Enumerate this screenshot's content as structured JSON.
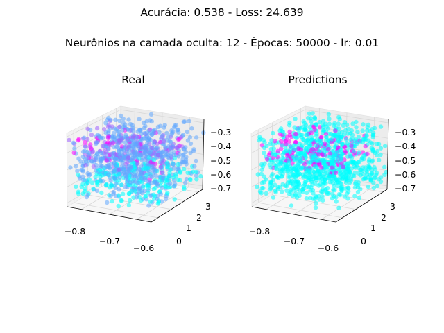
{
  "suptitle_line1": "Acurácia: 0.538 - Loss: 24.639",
  "suptitle_line2": "Neurônios na camada oculta: 12 - Épocas: 50000 - lr: 0.01",
  "colormap": "cool",
  "color_cyan": "#00ffff",
  "color_magenta": "#ff00ff",
  "color_purple": "#a060ff",
  "color_blue": "#60a8ff",
  "chart_data": [
    {
      "type": "scatter",
      "title": "Real",
      "projection": "3d",
      "point_count": 1000,
      "xlim": [
        -0.85,
        -0.55
      ],
      "ylim": [
        -0.5,
        3.3
      ],
      "zlim": [
        -0.72,
        -0.28
      ],
      "x_ticks": [
        "−0.8",
        "−0.7",
        "−0.6"
      ],
      "y_ticks": [
        "0",
        "1",
        "2",
        "3"
      ],
      "z_ticks": [
        "−0.3",
        "−0.4",
        "−0.5",
        "−0.6",
        "−0.7"
      ],
      "color_groups": [
        "magenta",
        "purple",
        "blue",
        "cyan"
      ],
      "grid": true
    },
    {
      "type": "scatter",
      "title": "Predictions",
      "projection": "3d",
      "point_count": 1000,
      "xlim": [
        -0.85,
        -0.55
      ],
      "ylim": [
        -0.5,
        3.3
      ],
      "zlim": [
        -0.72,
        -0.28
      ],
      "x_ticks": [
        "−0.8",
        "−0.7",
        "−0.6"
      ],
      "y_ticks": [
        "0",
        "1",
        "2",
        "3"
      ],
      "z_ticks": [
        "−0.3",
        "−0.4",
        "−0.5",
        "−0.6",
        "−0.7"
      ],
      "color_groups": [
        "magenta",
        "cyan"
      ],
      "grid": true
    }
  ]
}
